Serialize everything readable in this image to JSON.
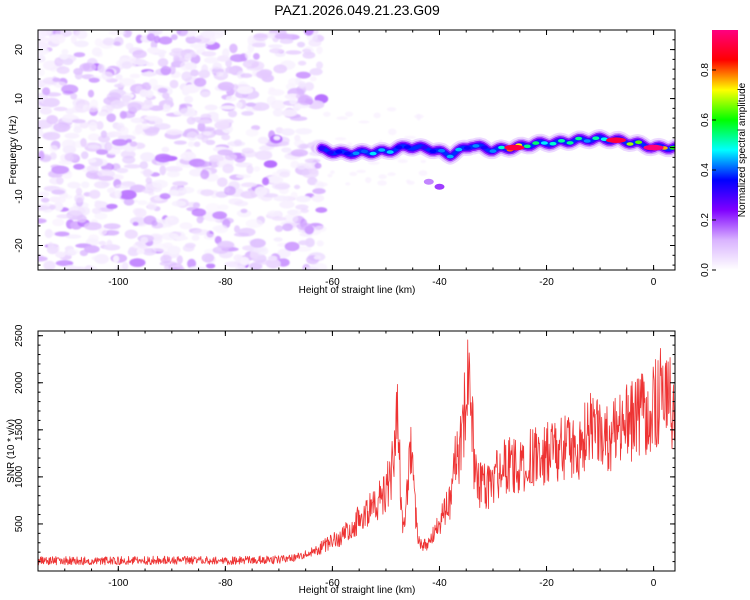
{
  "title": "PAZ1.2026.049.21.23.G09",
  "chart_data": [
    {
      "type": "heatmap",
      "name": "spectrogram",
      "xlabel": "Height of straight line (km)",
      "ylabel": "Frequency (Hz)",
      "xlim": [
        -115,
        4
      ],
      "ylim": [
        -25,
        24
      ],
      "xticks": [
        -100,
        -80,
        -60,
        -40,
        -20,
        0
      ],
      "yticks": [
        -20,
        -10,
        0,
        10,
        20
      ],
      "colorbar": {
        "label": "Normalized spectral amplitude",
        "range": [
          0,
          0.96
        ],
        "ticks": [
          0.0,
          0.2,
          0.4,
          0.6,
          0.8
        ],
        "tick_labels": [
          "0.0",
          "0.2",
          "0.4",
          "0.6",
          "0.8"
        ],
        "colors": [
          "#ffffff",
          "#d9b3ff",
          "#8000ff",
          "#0000ff",
          "#00ffff",
          "#00ff00",
          "#ffff00",
          "#ff0000",
          "#ff0080"
        ]
      },
      "noise_region": {
        "x": [
          -115,
          -62
        ],
        "y": [
          -25,
          24
        ],
        "max_amplitude": 0.15
      },
      "signal_track": [
        {
          "x": -62,
          "y": -0.5,
          "a": 0.35
        },
        {
          "x": -58,
          "y": -1.2,
          "a": 0.4
        },
        {
          "x": -54,
          "y": -1.0,
          "a": 0.45
        },
        {
          "x": -50,
          "y": -0.8,
          "a": 0.45
        },
        {
          "x": -46,
          "y": 0.2,
          "a": 0.4
        },
        {
          "x": -42,
          "y": -0.2,
          "a": 0.35
        },
        {
          "x": -38,
          "y": -1.5,
          "a": 0.45
        },
        {
          "x": -34,
          "y": 0.5,
          "a": 0.4
        },
        {
          "x": -30,
          "y": -0.5,
          "a": 0.45
        },
        {
          "x": -26,
          "y": 0.0,
          "a": 0.9
        },
        {
          "x": -22,
          "y": 0.8,
          "a": 0.55
        },
        {
          "x": -18,
          "y": 1.0,
          "a": 0.6
        },
        {
          "x": -14,
          "y": 1.5,
          "a": 0.55
        },
        {
          "x": -10,
          "y": 1.8,
          "a": 0.5
        },
        {
          "x": -7,
          "y": 1.5,
          "a": 0.9
        },
        {
          "x": -3,
          "y": 0.8,
          "a": 0.6
        },
        {
          "x": 0,
          "y": 0.0,
          "a": 0.95
        },
        {
          "x": 4,
          "y": 0.0,
          "a": 0.6
        }
      ],
      "secondary_blobs": [
        {
          "x": -42,
          "y": -7,
          "a": 0.15
        },
        {
          "x": -40,
          "y": -8,
          "a": 0.2
        }
      ]
    },
    {
      "type": "line",
      "name": "snr",
      "xlabel": "Height of straight line (km)",
      "ylabel": "SNR (10 * v/v)",
      "xlim": [
        -115,
        4
      ],
      "ylim": [
        0,
        2550
      ],
      "xticks": [
        -100,
        -80,
        -60,
        -40,
        -20,
        0
      ],
      "yticks": [
        500,
        1000,
        1500,
        2000,
        2500
      ],
      "color": "#ee3333",
      "series": [
        {
          "name": "SNR",
          "x": [
            -115,
            -100,
            -90,
            -80,
            -70,
            -66,
            -62,
            -58,
            -55,
            -52,
            -50,
            -48.5,
            -48,
            -47.5,
            -47,
            -46,
            -45.5,
            -44,
            -42,
            -40,
            -38,
            -37,
            -36,
            -35,
            -34.5,
            -34,
            -33.5,
            -33,
            -31,
            -28,
            -25,
            -22,
            -20,
            -17,
            -14,
            -12,
            -10,
            -8,
            -6,
            -4,
            -2,
            0,
            2,
            4
          ],
          "y": [
            110,
            110,
            115,
            110,
            120,
            150,
            250,
            380,
            550,
            700,
            850,
            1150,
            1700,
            1350,
            500,
            800,
            1350,
            300,
            280,
            500,
            750,
            1150,
            1300,
            1900,
            2300,
            1850,
            1100,
            900,
            900,
            1100,
            1150,
            1200,
            1250,
            1300,
            1300,
            1500,
            1450,
            1400,
            1500,
            1600,
            1700,
            1700,
            2050,
            1600
          ]
        }
      ]
    }
  ]
}
